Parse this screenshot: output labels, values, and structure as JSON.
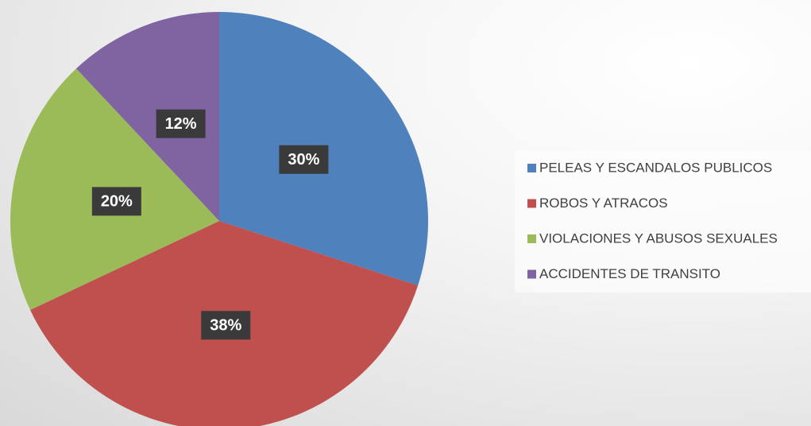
{
  "chart_data": {
    "type": "pie",
    "categories": [
      "PELEAS Y ESCANDALOS PUBLICOS",
      "ROBOS Y ATRACOS",
      "VIOLACIONES Y ABUSOS SEXUALES",
      "ACCIDENTES DE TRANSITO"
    ],
    "values": [
      30,
      38,
      20,
      12
    ],
    "value_labels": [
      "30%",
      "38%",
      "20%",
      "12%"
    ],
    "colors": [
      "#4f81bd",
      "#c0504d",
      "#9bbb59",
      "#8064a2"
    ],
    "legend": "right"
  }
}
